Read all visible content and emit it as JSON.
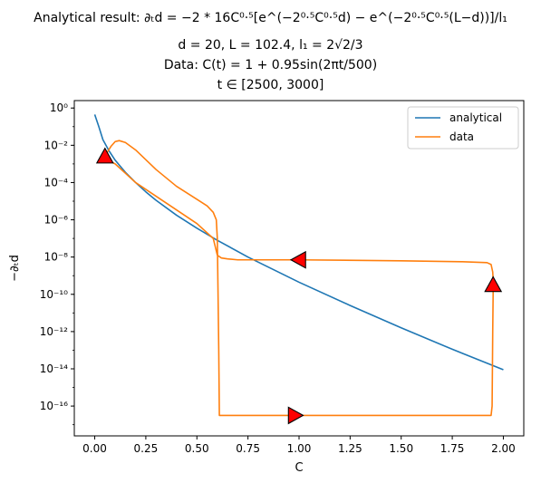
{
  "chart_data": {
    "type": "line",
    "title": "Analytical result: ∂ₜd = −2 * 16C^0.5[e^(−2^0.5 C^0.5 d) − e^(−2^0.5 C^0.5 (L−d))]/l₁",
    "title_lines": [
      "Analytical result: ∂ₜd = −2 * 16C⁰·⁵[e^(−2⁰·⁵C⁰·⁵d) − e^(−2⁰·⁵C⁰·⁵(L−d))]/l₁",
      "d = 20, L = 102.4, l₁ = 2√2/3",
      "Data: C(t) = 1 + 0.95sin(2πt/500)",
      "t ∈ [2500, 3000]"
    ],
    "xlabel": "C",
    "ylabel": "−∂ₜd",
    "xlim": [
      -0.1,
      2.1
    ],
    "ylim_log10": [
      -17.6,
      0.4
    ],
    "yscale": "log",
    "xticks": [
      0.0,
      0.25,
      0.5,
      0.75,
      1.0,
      1.25,
      1.5,
      1.75,
      2.0
    ],
    "xtick_labels": [
      "0.00",
      "0.25",
      "0.50",
      "0.75",
      "1.00",
      "1.25",
      "1.50",
      "1.75",
      "2.00"
    ],
    "yticks_log10": [
      0,
      -2,
      -4,
      -6,
      -8,
      -10,
      -12,
      -14,
      -16
    ],
    "ytick_labels": [
      "10⁰",
      "10⁻²",
      "10⁻⁴",
      "10⁻⁶",
      "10⁻⁸",
      "10⁻¹⁰",
      "10⁻¹²",
      "10⁻¹⁴",
      "10⁻¹⁶"
    ],
    "grid": false,
    "legend_position": "top-right",
    "series": [
      {
        "name": "analytical",
        "color": "#1f77b4",
        "x": [
          0.0,
          0.02,
          0.04,
          0.07,
          0.1,
          0.15,
          0.2,
          0.25,
          0.3,
          0.4,
          0.5,
          0.6,
          0.75,
          1.0,
          1.25,
          1.5,
          1.75,
          2.0
        ],
        "y_log10": [
          -0.35,
          -1.0,
          -1.7,
          -2.3,
          -2.8,
          -3.45,
          -4.0,
          -4.5,
          -4.95,
          -5.75,
          -6.45,
          -7.1,
          -8.0,
          -9.35,
          -10.6,
          -11.8,
          -12.95,
          -14.05
        ]
      },
      {
        "name": "data",
        "color": "#ff7f0e",
        "x": [
          0.05,
          0.06,
          0.08,
          0.1,
          0.12,
          0.15,
          0.2,
          0.3,
          0.4,
          0.5,
          0.55,
          0.58,
          0.595,
          0.6,
          0.603,
          0.607,
          0.61,
          0.7,
          1.0,
          1.5,
          1.94,
          1.945,
          1.948,
          1.95,
          1.95,
          1.948,
          1.94,
          1.92,
          1.8,
          1.5,
          1.0,
          0.8,
          0.7,
          0.65,
          0.62,
          0.6,
          0.58,
          0.5,
          0.35,
          0.2,
          0.1,
          0.05
        ],
        "y_log10": [
          -2.7,
          -2.4,
          -2.05,
          -1.8,
          -1.75,
          -1.85,
          -2.25,
          -3.3,
          -4.2,
          -4.9,
          -5.25,
          -5.6,
          -6.0,
          -7.0,
          -9.5,
          -13.0,
          -16.5,
          -16.5,
          -16.5,
          -16.5,
          -16.5,
          -16.0,
          -12.0,
          -10.0,
          -9.2,
          -8.8,
          -8.4,
          -8.3,
          -8.25,
          -8.2,
          -8.15,
          -8.15,
          -8.15,
          -8.1,
          -8.05,
          -7.9,
          -7.0,
          -6.2,
          -5.1,
          -4.0,
          -3.0,
          -2.7
        ]
      }
    ],
    "arrows": [
      {
        "x": 0.05,
        "y_log10": -2.6,
        "direction": "up",
        "color": "#ff0000"
      },
      {
        "x": 1.0,
        "y_log10": -8.15,
        "direction": "left",
        "color": "#ff0000"
      },
      {
        "x": 1.95,
        "y_log10": -9.5,
        "direction": "up",
        "color": "#ff0000"
      },
      {
        "x": 0.98,
        "y_log10": -16.5,
        "direction": "right",
        "color": "#ff0000"
      }
    ]
  }
}
